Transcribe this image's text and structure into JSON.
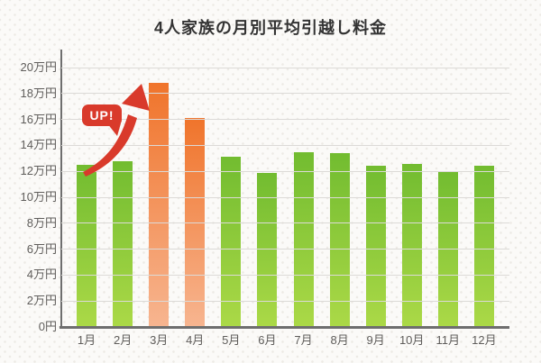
{
  "title": "4人家族の月別平均引越し料金",
  "annotation": {
    "label": "UP!"
  },
  "chart_data": {
    "type": "bar",
    "title": "4人家族の月別平均引越し料金",
    "categories": [
      "1月",
      "2月",
      "3月",
      "4月",
      "5月",
      "6月",
      "7月",
      "8月",
      "9月",
      "10月",
      "11月",
      "12月"
    ],
    "values": [
      12.5,
      12.8,
      18.8,
      16.1,
      13.1,
      11.9,
      13.5,
      13.4,
      12.4,
      12.6,
      12.0,
      12.4
    ],
    "unit": "万円",
    "xlabel": "",
    "ylabel": "",
    "ylim": [
      0,
      20
    ],
    "ytick_step": 2,
    "y_tick_labels": [
      "0円",
      "2万円",
      "4万円",
      "6万円",
      "8万円",
      "10万円",
      "12万円",
      "14万円",
      "16万円",
      "18万円",
      "20万円"
    ],
    "grid": "horizontal",
    "legend": "none",
    "highlighted_indices": [
      2,
      3
    ],
    "highlighted_categories": [
      "3月",
      "4月"
    ],
    "annotation": {
      "label": "UP!",
      "target": "3月"
    },
    "colors": {
      "bar_green_top": "#72bc30",
      "bar_green_bottom": "#abd947",
      "bar_orange_top": "#f0742b",
      "bar_orange_bottom": "#f7b590",
      "annotation_red": "#d93a2b",
      "axis": "#6e6e6e",
      "gridline": "#dcdad7",
      "title_text": "#333333",
      "tick_text": "#5f5d5b"
    }
  }
}
